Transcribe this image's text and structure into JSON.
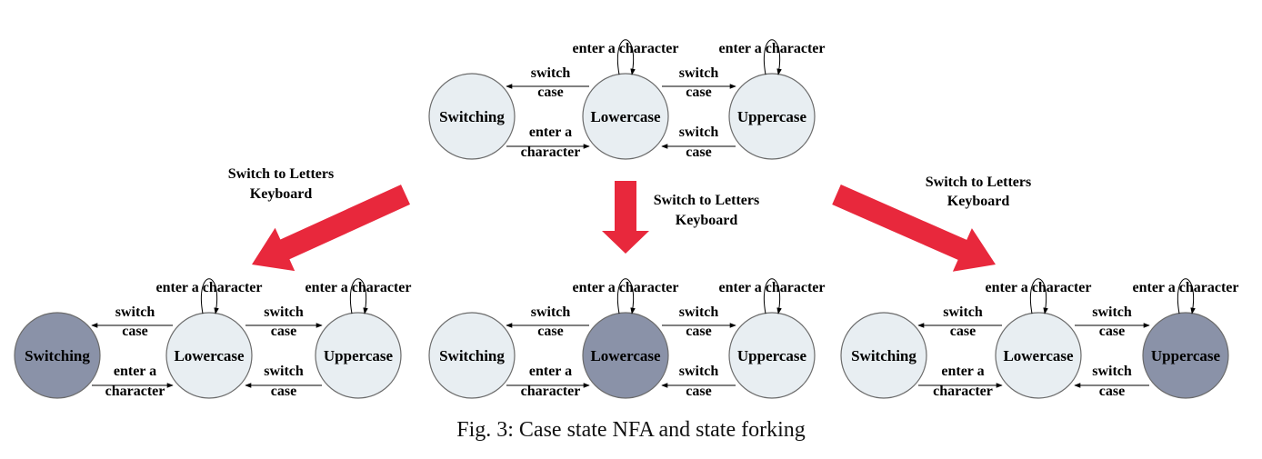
{
  "colors": {
    "inactive_fill": "#e8eef2",
    "active_fill": "#8a92a8",
    "fork_arrow": "#e8283c"
  },
  "state_names": {
    "switching": "Switching",
    "lowercase": "Lowercase",
    "uppercase": "Uppercase"
  },
  "edge_labels": {
    "enter_a_character": "enter a character",
    "switch": "switch",
    "case": "case",
    "enter_a": "enter a",
    "character": "character"
  },
  "fork_label": {
    "line1": "Switch to Letters",
    "line2": "Keyboard"
  },
  "diagrams": [
    {
      "id": "top",
      "active": "none"
    },
    {
      "id": "bottom-left",
      "active": "switching"
    },
    {
      "id": "bottom-middle",
      "active": "lowercase"
    },
    {
      "id": "bottom-right",
      "active": "uppercase"
    }
  ],
  "caption": "Fig. 3: Case state NFA and state forking"
}
